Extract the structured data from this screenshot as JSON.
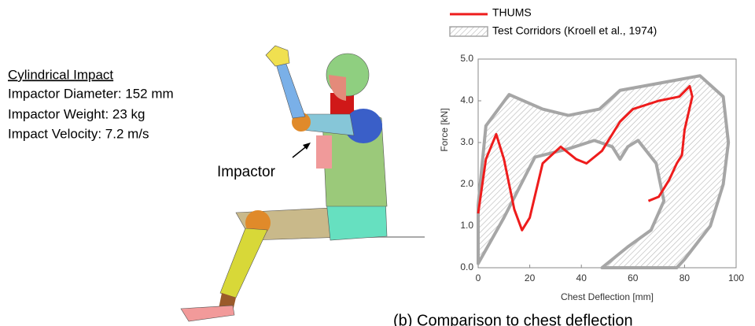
{
  "figure": {
    "heading": "Cylindrical Impact",
    "lines": [
      "Impactor Diameter: 152 mm",
      "Impactor Weight: 23 kg",
      "Impact Velocity: 7.2 m/s"
    ],
    "impactor_label": "Impactor",
    "caption": "(b)   Comparison to chest deflection"
  },
  "chart_data": {
    "type": "line",
    "x_label": "Chest Deflection [mm]",
    "y_label": "Force [kN]",
    "xlim": [
      0,
      100
    ],
    "ylim": [
      0,
      5
    ],
    "xticks": [
      0,
      20,
      40,
      60,
      80,
      100
    ],
    "yticks": [
      {
        "value": 0,
        "label": "0.0"
      },
      {
        "value": 1,
        "label": "1.0"
      },
      {
        "value": 2,
        "label": "2.0"
      },
      {
        "value": 3,
        "label": "3.0"
      },
      {
        "value": 4,
        "label": "4.0"
      },
      {
        "value": 5,
        "label": "5.0"
      }
    ],
    "series": [
      {
        "name": "THUMS",
        "color": "#ee1c1c",
        "x": [
          0,
          3,
          7,
          10,
          14,
          17,
          20,
          25,
          32,
          38,
          42,
          48,
          55,
          60,
          70,
          78,
          82,
          83,
          80,
          79,
          77,
          74,
          70,
          66
        ],
        "values": [
          1.3,
          2.6,
          3.2,
          2.6,
          1.4,
          0.9,
          1.2,
          2.5,
          2.9,
          2.6,
          2.5,
          2.8,
          3.5,
          3.8,
          4.0,
          4.1,
          4.35,
          4.1,
          3.3,
          2.7,
          2.5,
          2.1,
          1.7,
          1.6
        ]
      }
    ],
    "corridor": {
      "name": "Test Corridors  (Kroell et al., 1974)",
      "color": "#a6a6a6",
      "x": [
        0,
        0,
        3,
        12,
        25,
        35,
        47,
        55,
        86,
        95,
        97,
        95,
        90,
        80,
        77,
        48,
        58,
        67,
        72,
        69,
        62,
        58,
        55,
        52,
        45,
        35,
        22,
        10
      ],
      "y": [
        0.1,
        1.5,
        3.4,
        4.15,
        3.8,
        3.65,
        3.8,
        4.25,
        4.6,
        4.1,
        3.0,
        2.0,
        1.0,
        0.2,
        0,
        0,
        0.5,
        0.9,
        1.6,
        2.5,
        3.05,
        2.9,
        2.6,
        2.9,
        3.05,
        2.85,
        2.65,
        1.2
      ]
    }
  }
}
